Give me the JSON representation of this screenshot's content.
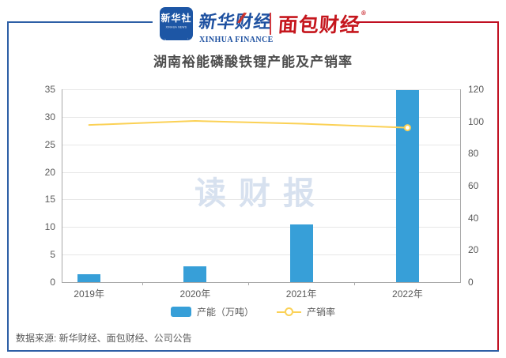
{
  "brand": {
    "agency_badge": {
      "title": "新华社",
      "subtitle": "XINHUA NEWS"
    },
    "finance_cn": "新华财经",
    "finance_en": "XINHUA FINANCE",
    "bread_cn": "面包财经",
    "reg_mark": "®"
  },
  "title": "湖南裕能磷酸铁锂产能及产销率",
  "watermark": "读财报",
  "legend": {
    "bar_label": "产能（万吨）",
    "line_label": "产销率"
  },
  "source": "数据来源: 新华财经、面包财经、公司公告",
  "colors": {
    "frame_blue": "#2d5fa6",
    "frame_red": "#c01022",
    "brand_blue": "#1d50a0",
    "brand_red": "#c5161d",
    "bar_blue": "#379fd8",
    "line_yellow": "#fbd155",
    "grid_gray": "#e7e7e7",
    "axis_gray": "#a8a8a8",
    "text_gray": "#595959"
  },
  "chart_data": {
    "type": "bar",
    "title": "湖南裕能磷酸铁锂产能及产销率",
    "categories": [
      "2019年",
      "2020年",
      "2021年",
      "2022年"
    ],
    "series": [
      {
        "name": "产能（万吨）",
        "type": "bar",
        "axis": "left",
        "color": "#379fd8",
        "values": [
          1.4,
          2.9,
          10.4,
          34.8
        ]
      },
      {
        "name": "产销率",
        "type": "line",
        "axis": "right",
        "color": "#fbd155",
        "values": [
          97.8,
          100.3,
          98.6,
          96.1
        ]
      }
    ],
    "left_axis": {
      "label": "",
      "min": 0,
      "max": 35,
      "ticks": [
        0,
        5,
        10,
        15,
        20,
        25,
        30,
        35
      ]
    },
    "right_axis": {
      "label": "",
      "min": 0,
      "max": 120,
      "ticks": [
        0,
        20,
        40,
        60,
        80,
        100,
        120
      ]
    },
    "grid": true,
    "legend_position": "bottom",
    "last_point_marker": true
  }
}
